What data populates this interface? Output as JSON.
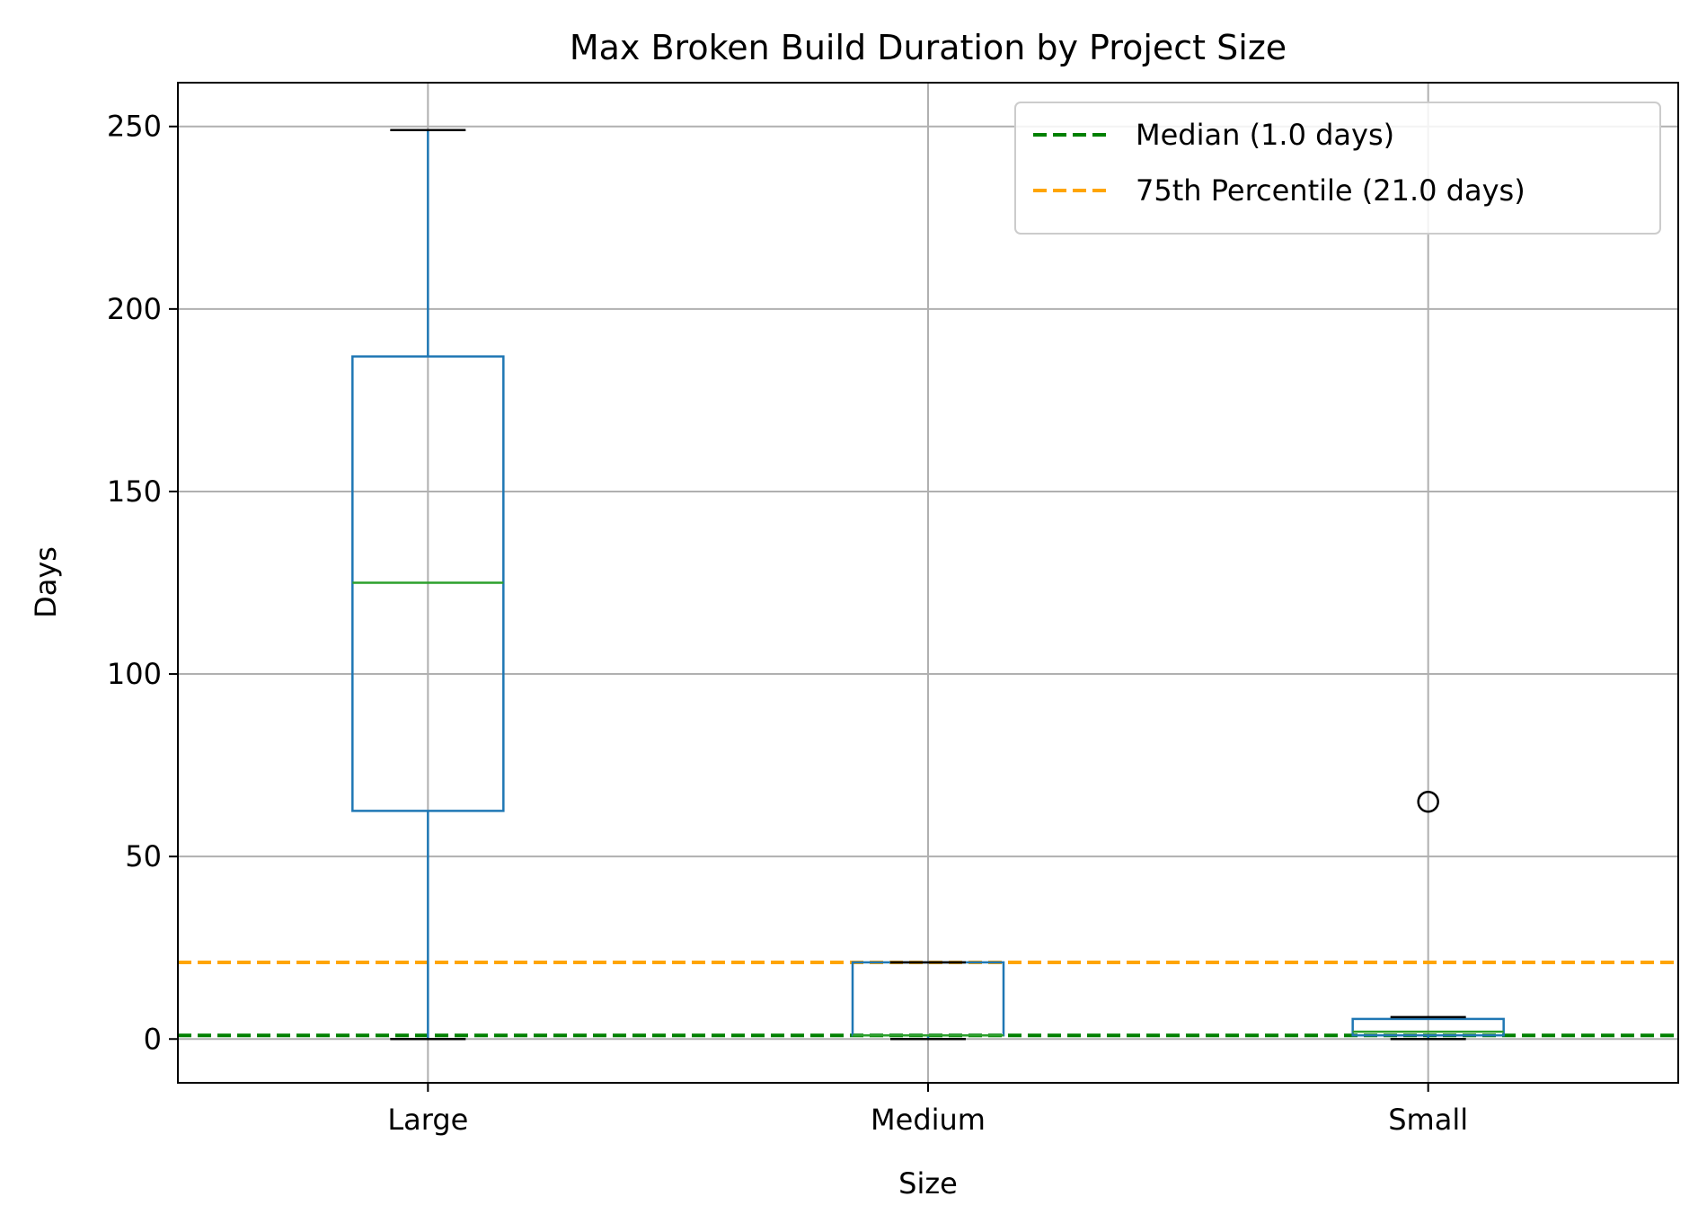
{
  "chart_data": {
    "type": "box",
    "title": "Max Broken Build Duration by Project Size",
    "xlabel": "Size",
    "ylabel": "Days",
    "ylim": [
      -12,
      262
    ],
    "yticks": [
      0,
      50,
      100,
      150,
      200,
      250
    ],
    "grid": true,
    "legend_position": "top-right",
    "categories": [
      "Large",
      "Medium",
      "Small"
    ],
    "boxes": [
      {
        "category": "Large",
        "whisker_low": 0,
        "q1": 62.5,
        "median": 125,
        "q3": 187,
        "whisker_high": 249,
        "outliers": []
      },
      {
        "category": "Medium",
        "whisker_low": 0,
        "q1": 1,
        "median": 1,
        "q3": 21,
        "whisker_high": 21,
        "outliers": []
      },
      {
        "category": "Small",
        "whisker_low": 0,
        "q1": 1,
        "median": 2,
        "q3": 5.5,
        "whisker_high": 6,
        "outliers": [
          65
        ]
      }
    ],
    "reference_lines": [
      {
        "label": "Median (1.0 days)",
        "value": 1.0,
        "color": "#008000"
      },
      {
        "label": "75th Percentile (21.0 days)",
        "value": 21.0,
        "color": "#FFA500"
      }
    ],
    "colors": {
      "box": "#1f77b4",
      "median": "#2ca02c",
      "whisker_cap": "#000000",
      "outlier": "#000000"
    }
  }
}
